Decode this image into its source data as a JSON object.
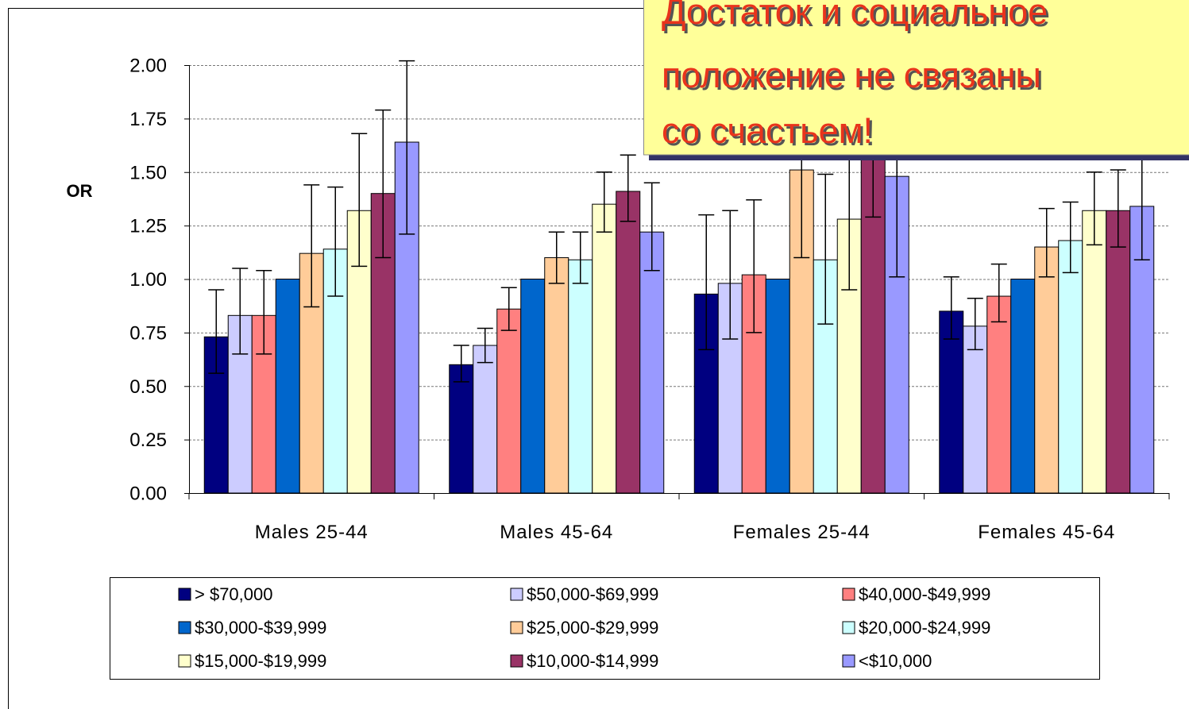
{
  "chart_data": {
    "type": "bar",
    "y_label": "OR",
    "categories": [
      "Males 25-44",
      "Males 45-64",
      "Females 25-44",
      "Females 45-64"
    ],
    "ylim": [
      0,
      2
    ],
    "yticks": [
      {
        "value": 0,
        "label": "0.00"
      },
      {
        "value": 0.25,
        "label": "0.25"
      },
      {
        "value": 0.5,
        "label": "0.50"
      },
      {
        "value": 0.75,
        "label": "0.75"
      },
      {
        "value": 1,
        "label": "1.00"
      },
      {
        "value": 1.25,
        "label": "1.25"
      },
      {
        "value": 1.5,
        "label": "1.50"
      },
      {
        "value": 1.75,
        "label": "1.75"
      },
      {
        "value": 2,
        "label": "2.00"
      }
    ],
    "grid": true,
    "series": [
      {
        "name": "> $70,000",
        "color": "#000080",
        "values": [
          0.73,
          0.6,
          0.93,
          0.85
        ],
        "lower": [
          0.56,
          0.52,
          0.67,
          0.72
        ],
        "upper": [
          0.95,
          0.69,
          1.3,
          1.01
        ]
      },
      {
        "name": "$50,000-$69,999",
        "color": "#ccccff",
        "values": [
          0.83,
          0.69,
          0.98,
          0.78
        ],
        "lower": [
          0.65,
          0.61,
          0.72,
          0.67
        ],
        "upper": [
          1.05,
          0.77,
          1.32,
          0.91
        ]
      },
      {
        "name": "$40,000-$49,999",
        "color": "#ff8080",
        "values": [
          0.83,
          0.86,
          1.02,
          0.92
        ],
        "lower": [
          0.65,
          0.76,
          0.75,
          0.8
        ],
        "upper": [
          1.04,
          0.96,
          1.37,
          1.07
        ]
      },
      {
        "name": "$30,000-$39,999",
        "color": "#0066cc",
        "values": [
          1,
          1,
          1,
          1
        ],
        "lower": [
          null,
          null,
          null,
          null
        ],
        "upper": [
          null,
          null,
          null,
          null
        ]
      },
      {
        "name": "$25,000-$29,999",
        "color": "#ffcc99",
        "values": [
          1.12,
          1.1,
          1.51,
          1.15
        ],
        "lower": [
          0.87,
          0.98,
          1.1,
          1.01
        ],
        "upper": [
          1.44,
          1.22,
          1.95,
          1.33
        ]
      },
      {
        "name": "$20,000-$24,999",
        "color": "#ccffff",
        "values": [
          1.14,
          1.09,
          1.09,
          1.18
        ],
        "lower": [
          0.92,
          0.98,
          0.79,
          1.03
        ],
        "upper": [
          1.43,
          1.22,
          1.49,
          1.36
        ]
      },
      {
        "name": "$15,000-$19,999",
        "color": "#ffffcc",
        "values": [
          1.32,
          1.35,
          1.28,
          1.32
        ],
        "lower": [
          1.06,
          1.22,
          0.95,
          1.16
        ],
        "upper": [
          1.68,
          1.5,
          1.72,
          1.5
        ]
      },
      {
        "name": "$10,000-$14,999",
        "color": "#993366",
        "values": [
          1.4,
          1.41,
          1.75,
          1.32
        ],
        "lower": [
          1.1,
          1.27,
          1.29,
          1.15
        ],
        "upper": [
          1.79,
          1.58,
          1.95,
          1.51
        ]
      },
      {
        "name": "<$10,000",
        "color": "#9999ff",
        "values": [
          1.64,
          1.22,
          1.48,
          1.34
        ],
        "lower": [
          1.21,
          1.04,
          1.01,
          1.09
        ],
        "upper": [
          2.02,
          1.45,
          1.95,
          1.65
        ]
      }
    ]
  },
  "callout": {
    "lines": [
      "Достаток и социальное",
      "положение не связаны",
      "со счастьем!"
    ]
  }
}
